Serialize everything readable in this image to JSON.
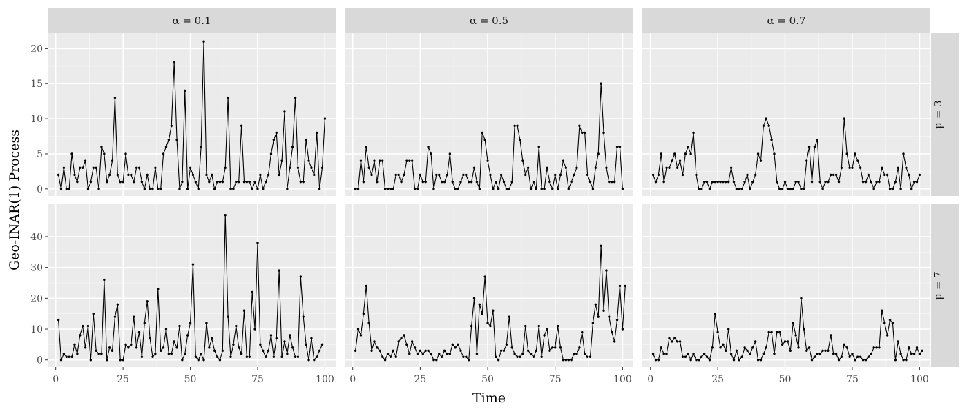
{
  "chart_data": {
    "type": "line",
    "xlabel": "Time",
    "ylabel": "Geo-INAR(1) Process",
    "col_facets": [
      "α = 0.1",
      "α = 0.5",
      "α = 0.7"
    ],
    "row_facets": [
      "μ = 3",
      "μ = 7"
    ],
    "x_ticks": [
      0,
      25,
      50,
      75,
      100
    ],
    "xlim": [
      -3,
      104
    ],
    "rows": [
      {
        "y_ticks": [
          0,
          5,
          10,
          15,
          20
        ],
        "ylim": [
          -1.0,
          22.2
        ]
      },
      {
        "y_ticks": [
          0,
          10,
          20,
          30,
          40
        ],
        "ylim": [
          -2.3,
          50.5
        ]
      }
    ],
    "grid": true,
    "marker": "point",
    "panels": [
      {
        "row": 0,
        "col": 0,
        "values": [
          2,
          0,
          3,
          0,
          0,
          5,
          2,
          1,
          3,
          3,
          4,
          0,
          1,
          3,
          3,
          0,
          6,
          5,
          1,
          2,
          4,
          13,
          2,
          1,
          1,
          5,
          2,
          2,
          1,
          3,
          3,
          1,
          0,
          2,
          0,
          0,
          3,
          0,
          0,
          5,
          6,
          7,
          9,
          18,
          7,
          0,
          1,
          14,
          0,
          3,
          2,
          1,
          0,
          6,
          21,
          2,
          1,
          2,
          0,
          1,
          1,
          1,
          3,
          13,
          0,
          0,
          1,
          1,
          9,
          1,
          1,
          1,
          0,
          1,
          0,
          2,
          0,
          1,
          2,
          5,
          7,
          8,
          2,
          4,
          11,
          0,
          3,
          6,
          13,
          3,
          1,
          1,
          7,
          4,
          3,
          2,
          8,
          0,
          3,
          10
        ]
      },
      {
        "row": 0,
        "col": 1,
        "values": [
          0,
          0,
          4,
          1,
          6,
          3,
          2,
          4,
          1,
          4,
          4,
          0,
          0,
          0,
          0,
          2,
          2,
          1,
          2,
          4,
          4,
          4,
          0,
          0,
          2,
          1,
          1,
          6,
          5,
          0,
          2,
          2,
          1,
          1,
          2,
          5,
          1,
          0,
          0,
          1,
          2,
          2,
          1,
          1,
          3,
          1,
          0,
          8,
          7,
          4,
          2,
          0,
          1,
          0,
          2,
          1,
          0,
          0,
          1,
          9,
          9,
          7,
          4,
          2,
          3,
          0,
          1,
          0,
          6,
          0,
          0,
          3,
          1,
          0,
          2,
          0,
          2,
          4,
          3,
          0,
          1,
          2,
          3,
          9,
          8,
          8,
          2,
          1,
          0,
          3,
          5,
          15,
          8,
          3,
          1,
          1,
          1,
          6,
          6,
          0
        ]
      },
      {
        "row": 0,
        "col": 2,
        "values": [
          2,
          1,
          2,
          5,
          1,
          3,
          3,
          4,
          5,
          3,
          4,
          2,
          5,
          6,
          5,
          8,
          2,
          0,
          0,
          1,
          1,
          0,
          1,
          1,
          1,
          1,
          1,
          1,
          1,
          3,
          1,
          0,
          0,
          0,
          1,
          2,
          0,
          1,
          2,
          5,
          4,
          9,
          10,
          9,
          7,
          5,
          1,
          0,
          0,
          1,
          0,
          0,
          0,
          1,
          1,
          0,
          0,
          4,
          6,
          1,
          6,
          7,
          1,
          0,
          1,
          1,
          2,
          2,
          2,
          1,
          3,
          10,
          5,
          3,
          3,
          5,
          4,
          3,
          1,
          1,
          2,
          1,
          0,
          1,
          1,
          3,
          2,
          2,
          0,
          0,
          1,
          3,
          0,
          5,
          3,
          2,
          0,
          1,
          1,
          2
        ]
      },
      {
        "row": 1,
        "col": 0,
        "values": [
          13,
          0,
          2,
          1,
          1,
          1,
          5,
          2,
          8,
          11,
          4,
          11,
          0,
          15,
          3,
          2,
          2,
          26,
          0,
          4,
          3,
          14,
          18,
          0,
          0,
          5,
          4,
          5,
          14,
          4,
          9,
          1,
          12,
          19,
          7,
          1,
          2,
          23,
          3,
          4,
          10,
          2,
          2,
          6,
          4,
          11,
          0,
          2,
          8,
          12,
          31,
          1,
          0,
          2,
          0,
          12,
          4,
          7,
          3,
          1,
          0,
          3,
          47,
          14,
          1,
          5,
          11,
          4,
          2,
          16,
          1,
          1,
          22,
          10,
          38,
          5,
          3,
          1,
          3,
          8,
          1,
          7,
          29,
          1,
          6,
          2,
          8,
          4,
          1,
          1,
          27,
          14,
          5,
          0,
          7,
          0,
          1,
          3,
          5
        ]
      },
      {
        "row": 1,
        "col": 1,
        "values": [
          3,
          10,
          8,
          15,
          24,
          12,
          3,
          6,
          4,
          3,
          1,
          0,
          2,
          1,
          3,
          1,
          6,
          7,
          8,
          5,
          2,
          6,
          4,
          2,
          3,
          2,
          3,
          3,
          2,
          0,
          0,
          2,
          1,
          3,
          2,
          2,
          5,
          4,
          5,
          3,
          1,
          1,
          0,
          11,
          20,
          2,
          18,
          15,
          27,
          12,
          11,
          16,
          1,
          0,
          3,
          3,
          5,
          14,
          4,
          2,
          1,
          1,
          2,
          11,
          3,
          2,
          1,
          3,
          11,
          1,
          8,
          10,
          3,
          4,
          4,
          11,
          4,
          0,
          0,
          0,
          0,
          2,
          2,
          4,
          9,
          2,
          1,
          1,
          12,
          18,
          14,
          37,
          16,
          29,
          14,
          9,
          6,
          13,
          24,
          10,
          24
        ]
      },
      {
        "row": 1,
        "col": 2,
        "values": [
          2,
          0,
          0,
          4,
          2,
          2,
          7,
          6,
          7,
          6,
          6,
          1,
          1,
          2,
          0,
          2,
          0,
          0,
          1,
          2,
          1,
          0,
          4,
          15,
          9,
          4,
          5,
          3,
          10,
          2,
          0,
          3,
          0,
          1,
          4,
          3,
          2,
          4,
          6,
          0,
          0,
          2,
          4,
          9,
          9,
          2,
          9,
          9,
          5,
          6,
          6,
          3,
          12,
          8,
          4,
          20,
          10,
          3,
          4,
          0,
          1,
          2,
          2,
          3,
          3,
          3,
          8,
          2,
          2,
          0,
          1,
          5,
          4,
          1,
          2,
          0,
          1,
          1,
          0,
          0,
          1,
          2,
          4,
          4,
          4,
          16,
          12,
          8,
          13,
          12,
          0,
          6,
          2,
          0,
          0,
          4,
          2,
          2,
          4,
          2,
          3
        ]
      }
    ]
  }
}
